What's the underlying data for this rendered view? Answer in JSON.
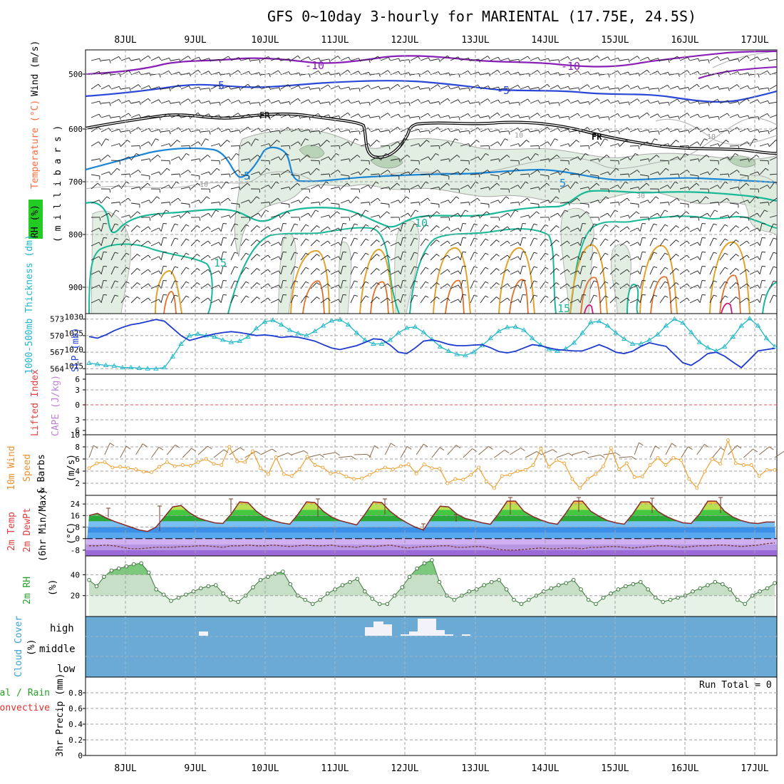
{
  "title": "GFS 0~10day 3-hourly for MARIENTAL (17.75E, 24.5S)",
  "days": [
    "8JUL",
    "9JUL",
    "10JUL",
    "11JUL",
    "12JUL",
    "13JUL",
    "14JUL",
    "15JUL",
    "16JUL",
    "17JUL"
  ],
  "colors": {
    "purple": "#8a1fb8",
    "blue": "#2a48d8",
    "cyan": "#1b86d6",
    "teal": "#18b898",
    "orange": "#e3a22a",
    "darkorange": "#e0702a",
    "magenta": "#d0187a",
    "rh_fill": "#d9eedb",
    "cloud_bg": "#6aaad4",
    "barb": "#8a6a4a",
    "wind_line": "#f0a030"
  },
  "panels": {
    "upper": {
      "side_labels": {
        "wind": "Wind (m/s)",
        "temperature": "Temperature (°C)",
        "rh": "RH (%)",
        "pressure_axis": "( m i l l i b a r s )"
      },
      "yticks": [
        "500",
        "600",
        "700",
        "800",
        "900"
      ],
      "contour_labels": {
        "m10a": "-10",
        "m10b": "-10",
        "m5a": "-5",
        "m5b": "-5",
        "fra": "FR",
        "frb": "FR",
        "p5a": "5",
        "p5b": "5",
        "p10": "10",
        "p15a": "15",
        "p15b": "15",
        "rh10a": "10",
        "rh10b": "10",
        "rh10c": "10",
        "rh30": "30"
      }
    },
    "slp": {
      "side_labels": {
        "thickness": "1000-500mb Thickness (dm)",
        "slp": "SLP (mb)"
      },
      "yticks_left": [
        "573",
        "570",
        "567",
        "564"
      ],
      "yticks_right": [
        "1030",
        "1025",
        "1020",
        "1015"
      ]
    },
    "cape": {
      "side_labels": {
        "li": "Lifted Index",
        "cape": "CAPE (J/kg)"
      },
      "yticks": [
        "6",
        "3",
        "0",
        "3",
        "6"
      ]
    },
    "wind10m": {
      "side_labels": {
        "wind": "10m Wind",
        "speed": "Speed",
        "barbs": "& Barbs",
        "unit": "(m/s)"
      },
      "yticks": [
        "10",
        "8",
        "6",
        "4",
        "2"
      ]
    },
    "temp2m": {
      "side_labels": {
        "temp": "2m Temp",
        "dewpt": "2m DewPt",
        "minmax": "(6hr Min/Max)",
        "unit": "(°C)"
      },
      "yticks": [
        "24",
        "16",
        "8",
        "0",
        "-8"
      ]
    },
    "rh2m": {
      "side_labels": {
        "rh": "2m RH",
        "unit": "(%)"
      },
      "yticks": [
        "40",
        "20"
      ]
    },
    "cloud": {
      "side_labels": {
        "cover": "Cloud Cover",
        "unit": "(%)"
      },
      "levels": [
        "high",
        "middle",
        "low"
      ]
    },
    "precip": {
      "side_labels": {
        "total": "Total / Rain",
        "convective": "Convective",
        "precip": "3hr Precip (mm)"
      },
      "yticks": [
        "0.8",
        "0.6",
        "0.4",
        "0.2",
        "0"
      ],
      "run_total": "Run Total = 0"
    }
  },
  "chart_data": [
    {
      "type": "line",
      "panel": "slp",
      "series": [
        {
          "name": "1000-500mb Thickness (dm)",
          "values": [
            565.0,
            564.8,
            564.6,
            564.5,
            564.2,
            564.2,
            564.1,
            564.0,
            564.0,
            564.2,
            566.2,
            568.5,
            570.0,
            570.3,
            570.0,
            569.8,
            569.2,
            568.8,
            569.0,
            569.8,
            571.3,
            572.5,
            572.8,
            572.0,
            571.0,
            570.4,
            570.0,
            570.8,
            571.8,
            572.7,
            572.9,
            572.0,
            570.5,
            569.2,
            568.5,
            568.5,
            569.2,
            570.5,
            571.4,
            571.6,
            570.6,
            569.3,
            568.0,
            567.2,
            566.6,
            566.4,
            567.0,
            568.2,
            569.5,
            570.8,
            571.5,
            571.6,
            571.0,
            569.5,
            568.3,
            567.5,
            567.2,
            567.6,
            568.7,
            570.5,
            572.4,
            572.6,
            571.8,
            570.5,
            569.4,
            568.5,
            568.5,
            569.2,
            570.2,
            571.8,
            573.0,
            572.3,
            570.6,
            568.8,
            567.8,
            567.2,
            568.0,
            569.8,
            571.8,
            573.1,
            571.8,
            569.5,
            568.0
          ]
        },
        {
          "name": "SLP (mb)",
          "values": [
            1024.0,
            1023.5,
            1024.5,
            1025.8,
            1026.8,
            1027.6,
            1028.0,
            1028.6,
            1029.2,
            1028.7,
            1026.5,
            1024.3,
            1022.8,
            1023.5,
            1024.2,
            1024.8,
            1025.2,
            1025.5,
            1025.2,
            1024.8,
            1024.3,
            1024.5,
            1024.2,
            1023.7,
            1024.0,
            1023.8,
            1023.2,
            1022.6,
            1021.5,
            1020.5,
            1020.0,
            1020.6,
            1021.2,
            1022.2,
            1023.3,
            1023.1,
            1021.4,
            1019.2,
            1018.8,
            1020.5,
            1022.6,
            1023.0,
            1022.4,
            1021.6,
            1021.2,
            1021.2,
            1021.4,
            1021.5,
            1020.6,
            1019.4,
            1019.0,
            1019.5,
            1020.5,
            1021.5,
            1021.2,
            1020.5,
            1020.0,
            1019.8,
            1019.6,
            1019.6,
            1020.5,
            1021.5,
            1020.5,
            1019.2,
            1018.8,
            1019.5,
            1021.0,
            1022.1,
            1021.5,
            1021.0,
            1018.5,
            1016.0,
            1015.2,
            1016.8,
            1018.8,
            1019.2,
            1018.0,
            1016.2,
            1014.5,
            1017.0,
            1019.6,
            1020.0,
            1020.4
          ]
        }
      ],
      "ylim_left": [
        563,
        574
      ],
      "ylim_right": [
        1012.5,
        1031
      ]
    },
    {
      "type": "line",
      "panel": "wind10m",
      "ylabel": "(m/s)",
      "ylim": [
        0,
        10
      ],
      "series": [
        {
          "name": "Speed",
          "values": [
            4.5,
            5.3,
            5.5,
            4.6,
            4.7,
            4.5,
            4.3,
            3.9,
            3.8,
            4.7,
            5.5,
            4.8,
            5.0,
            4.9,
            5.5,
            6.0,
            5.2,
            5.0,
            8.0,
            5.6,
            5.5,
            7.3,
            4.5,
            3.5,
            6.3,
            3.5,
            3.2,
            4.3,
            6.4,
            5.0,
            4.6,
            3.6,
            3.8,
            3.1,
            2.7,
            2.8,
            3.4,
            4.1,
            4.6,
            4.3,
            4.8,
            5.1,
            3.6,
            5.1,
            4.5,
            4.4,
            2.0,
            2.7,
            2.6,
            3.4,
            4.6,
            2.3,
            1.2,
            3.2,
            3.4,
            4.0,
            4.2,
            5.0,
            7.7,
            4.7,
            5.8,
            5.3,
            2.7,
            1.2,
            2.7,
            3.5,
            4.8,
            7.8,
            4.3,
            5.3,
            3.0,
            3.1,
            5.0,
            6.2,
            5.0,
            6.2,
            5.8,
            2.7,
            1.2,
            3.9,
            6.0,
            5.2,
            9.1,
            5.3,
            5.0,
            5.0,
            3.2,
            4.2,
            4.2
          ]
        }
      ]
    },
    {
      "type": "area",
      "panel": "temp2m",
      "ylabel": "(°C)",
      "ylim": [
        -12,
        30
      ],
      "series": [
        {
          "name": "2m Temp",
          "values": [
            16.0,
            17.5,
            14.5,
            12.0,
            10.0,
            8.0,
            6.0,
            5.0,
            8.0,
            15.0,
            22.0,
            23.0,
            18.0,
            14.5,
            12.5,
            11.0,
            10.5,
            17.0,
            25.5,
            25.0,
            19.0,
            15.0,
            12.5,
            11.0,
            10.0,
            17.0,
            25.5,
            25.0,
            19.0,
            15.0,
            12.5,
            11.0,
            9.5,
            17.0,
            25.5,
            25.0,
            19.0,
            14.5,
            11.0,
            8.0,
            6.0,
            15.0,
            22.5,
            22.0,
            17.0,
            14.0,
            12.5,
            11.0,
            10.0,
            17.5,
            26.0,
            26.0,
            19.0,
            15.5,
            13.0,
            11.0,
            10.0,
            17.5,
            26.0,
            26.0,
            19.0,
            15.5,
            12.5,
            11.0,
            10.0,
            17.0,
            25.5,
            25.5,
            19.0,
            15.5,
            13.0,
            11.0,
            10.5,
            17.0,
            26.0,
            26.0,
            19.0,
            15.0,
            12.5,
            11.0,
            10.5,
            11.5,
            11.5
          ]
        },
        {
          "name": "2m DewPt",
          "values": [
            -5.0,
            -5.0,
            -4.5,
            -5.0,
            -6.0,
            -7.0,
            -7.0,
            -6.5,
            -6.0,
            -6.0,
            -6.0,
            -5.5,
            -5.5,
            -5.0,
            -5.0,
            -5.5,
            -6.0,
            -5.0,
            -5.0,
            -4.5,
            -5.0,
            -5.0,
            -4.5,
            -5.0,
            -5.5,
            -5.0,
            -4.5,
            -5.0,
            -5.0,
            -4.5,
            -5.5,
            -5.5,
            -6.0,
            -5.0,
            -5.5,
            -5.0,
            -4.5,
            -5.5,
            -6.5,
            -6.0,
            -5.5,
            -5.5,
            -5.0,
            -5.0,
            -6.0,
            -6.0,
            -5.5,
            -5.5,
            -6.5,
            -7.5,
            -8.0,
            -8.0,
            -7.5,
            -7.0,
            -6.5,
            -7.0,
            -7.0,
            -6.5,
            -6.5,
            -7.0,
            -6.0,
            -6.0,
            -5.5,
            -5.5,
            -6.0,
            -6.5,
            -6.0,
            -5.5,
            -5.0,
            -5.0,
            -5.5,
            -6.0,
            -5.5,
            -5.0,
            -5.0,
            -4.5,
            -4.5,
            -5.0,
            -5.5,
            -5.0,
            -4.5,
            -3.5,
            -3.0
          ]
        }
      ]
    },
    {
      "type": "area",
      "panel": "rh2m",
      "ylabel": "(%)",
      "ylim": [
        0,
        58
      ],
      "series": [
        {
          "name": "2m RH",
          "values": [
            35,
            29,
            38,
            44,
            46,
            48,
            50,
            51,
            42,
            26,
            21,
            15,
            18,
            21,
            24,
            27,
            29,
            30,
            22,
            16,
            14,
            20,
            28,
            35,
            38,
            41,
            43,
            31,
            20,
            16,
            12,
            16,
            22,
            26,
            30,
            33,
            36,
            24,
            17,
            12,
            12,
            20,
            28,
            38,
            46,
            51,
            54,
            33,
            20,
            16,
            20,
            24,
            26,
            30,
            33,
            35,
            26,
            16,
            12,
            16,
            20,
            24,
            27,
            30,
            32,
            35,
            26,
            16,
            12,
            18,
            22,
            26,
            29,
            31,
            33,
            26,
            18,
            14,
            16,
            18,
            20,
            24,
            27,
            30,
            33,
            31,
            26,
            16,
            12,
            20,
            24,
            27,
            32
          ]
        }
      ]
    },
    {
      "type": "bar",
      "panel": "cloud",
      "series": [
        {
          "name": "Cloud Cover",
          "values": [
            0,
            0,
            0,
            0,
            0,
            0,
            0,
            0,
            0,
            0,
            0,
            0,
            0,
            0,
            0,
            0,
            0,
            0,
            0,
            0,
            0,
            0,
            0,
            0,
            0,
            0,
            0,
            0,
            0,
            0,
            0,
            0,
            0,
            0,
            0,
            0,
            0,
            0,
            0,
            0,
            0,
            0,
            0,
            0,
            0,
            0,
            0,
            0,
            0,
            0,
            0,
            0,
            0,
            0,
            0,
            0,
            0,
            0,
            0,
            0,
            0,
            0,
            0,
            0,
            0,
            0,
            0,
            0,
            0,
            0,
            0,
            0,
            0,
            0,
            0,
            0,
            0,
            0,
            0,
            0,
            0,
            0,
            0,
            0,
            0,
            0,
            0,
            0,
            0,
            0,
            0,
            0,
            0,
            0,
            0,
            0,
            0,
            0,
            0,
            0
          ]
        }
      ]
    },
    {
      "type": "bar",
      "panel": "precip",
      "ylabel": "3hr Precip (mm)",
      "ylim": [
        0,
        1.0
      ],
      "series": [
        {
          "name": "Total / Rain",
          "values": []
        },
        {
          "name": "Convective",
          "values": []
        }
      ]
    }
  ]
}
